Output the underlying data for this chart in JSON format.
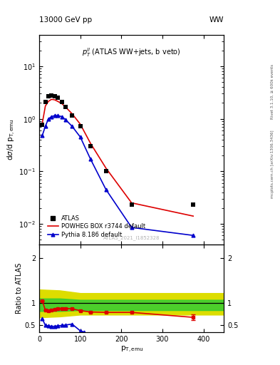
{
  "title_left": "13000 GeV pp",
  "title_right": "WW",
  "plot_label": "$p_T^{ll}$ (ATLAS WW+jets, b veto)",
  "watermark": "ATLAS_2021_I1852328",
  "rivet_text": "Rivet 3.1.10, ≥ 600k events",
  "arxiv_text": "[arXiv:1306.3436]",
  "mcplots_text": "mcplots.cern.ch",
  "ylabel_main": "dσ/d p$_{T,emu}$",
  "ylabel_ratio": "Ratio to ATLAS",
  "xlabel": "p$_{T,emu}$",
  "xlim": [
    0,
    450
  ],
  "ylim_main": [
    0.004,
    40
  ],
  "ylim_ratio": [
    0.35,
    2.3
  ],
  "atlas_x": [
    7.5,
    15,
    22.5,
    30,
    37.5,
    45,
    55,
    65,
    80,
    100,
    125,
    162.5,
    225,
    375
  ],
  "atlas_y": [
    0.78,
    2.1,
    2.7,
    2.8,
    2.65,
    2.5,
    2.1,
    1.7,
    1.15,
    0.72,
    0.3,
    0.1,
    0.023,
    0.023
  ],
  "powheg_x": [
    7.5,
    15,
    22.5,
    30,
    37.5,
    45,
    55,
    65,
    80,
    100,
    125,
    162.5,
    225,
    375
  ],
  "powheg_y": [
    0.82,
    1.75,
    2.15,
    2.35,
    2.3,
    2.15,
    1.95,
    1.65,
    1.25,
    0.79,
    0.34,
    0.115,
    0.025,
    0.014
  ],
  "pythia_x": [
    7.5,
    15,
    22.5,
    30,
    37.5,
    45,
    55,
    65,
    80,
    100,
    125,
    162.5,
    225,
    375
  ],
  "pythia_y": [
    0.48,
    0.72,
    1.0,
    1.1,
    1.15,
    1.15,
    1.1,
    0.95,
    0.72,
    0.45,
    0.17,
    0.045,
    0.0085,
    0.006
  ],
  "ratio_powheg_x": [
    7.5,
    15,
    22.5,
    30,
    37.5,
    45,
    55,
    65,
    80,
    100,
    125,
    162.5,
    225,
    375
  ],
  "ratio_powheg_y": [
    1.05,
    0.84,
    0.82,
    0.84,
    0.86,
    0.87,
    0.88,
    0.88,
    0.87,
    0.83,
    0.8,
    0.79,
    0.79,
    0.68
  ],
  "ratio_powheg_yerr": [
    0.0,
    0.0,
    0.0,
    0.0,
    0.0,
    0.0,
    0.0,
    0.0,
    0.0,
    0.0,
    0.0,
    0.0,
    0.0,
    0.06
  ],
  "ratio_pythia_x": [
    7.5,
    15,
    22.5,
    30,
    37.5,
    45,
    55,
    65,
    80,
    100,
    110
  ],
  "ratio_pythia_y": [
    0.65,
    0.5,
    0.49,
    0.48,
    0.48,
    0.49,
    0.5,
    0.51,
    0.53,
    0.38,
    0.35
  ],
  "band_green_lo": 0.82,
  "band_green_hi": 1.1,
  "band_yellow_lo": 0.7,
  "band_yellow_hi": 1.28,
  "band_x_vals": [
    0,
    50,
    100,
    150,
    200,
    250,
    300,
    350,
    450
  ],
  "band_green_lo_arr": [
    0.82,
    0.82,
    0.84,
    0.84,
    0.84,
    0.84,
    0.84,
    0.84,
    0.84
  ],
  "band_green_hi_arr": [
    1.1,
    1.1,
    1.07,
    1.07,
    1.07,
    1.07,
    1.07,
    1.07,
    1.07
  ],
  "band_yellow_lo_arr": [
    0.68,
    0.7,
    0.74,
    0.74,
    0.74,
    0.74,
    0.74,
    0.74,
    0.74
  ],
  "band_yellow_hi_arr": [
    1.3,
    1.28,
    1.22,
    1.22,
    1.22,
    1.22,
    1.22,
    1.22,
    1.22
  ],
  "colors": {
    "atlas": "black",
    "powheg": "#dd0000",
    "pythia": "#0000cc",
    "green_band": "#33cc33",
    "yellow_band": "#dddd00"
  }
}
